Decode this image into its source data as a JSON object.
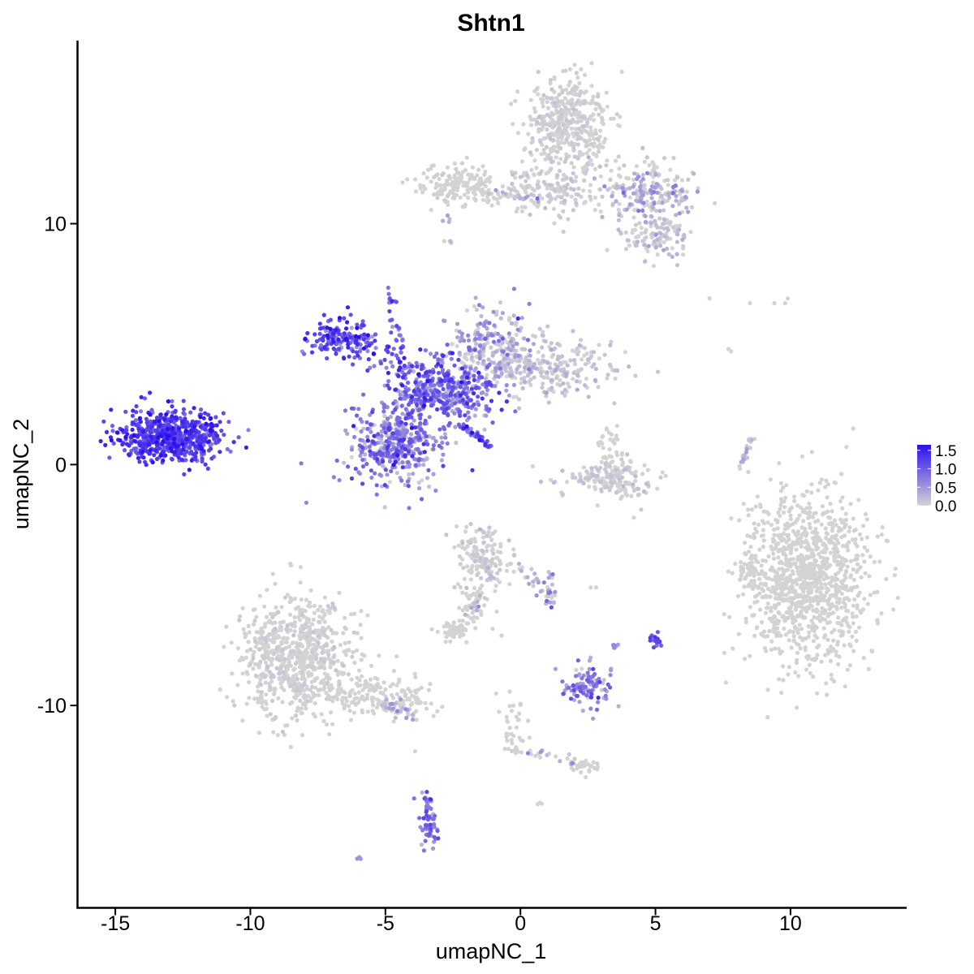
{
  "chart_data": {
    "type": "scatter",
    "title": "Shtn1",
    "xlabel": "umapNC_1",
    "ylabel": "umapNC_2",
    "xlim": [
      -16.4,
      14.3
    ],
    "ylim": [
      -18.4,
      17.6
    ],
    "x_ticks": [
      -15,
      -10,
      -5,
      0,
      5,
      10
    ],
    "x_tick_labels": [
      "-15",
      "-10",
      "-5",
      "0",
      "5",
      "10"
    ],
    "y_ticks": [
      -10,
      0,
      10
    ],
    "y_tick_labels": [
      "-10",
      "0",
      "10"
    ],
    "grid": false,
    "legend_position": "right",
    "color_scale": {
      "low_color": "#d3d3d3",
      "high_color": "#2c0ff0",
      "min": 0,
      "max": 1.65,
      "breaks": [
        1.5,
        1.0,
        0.5,
        0.0
      ],
      "break_labels": [
        "1.5",
        "1.0",
        "0.5",
        "0.0"
      ]
    },
    "clusters": [
      {
        "cx": -12.9,
        "cy": 1.2,
        "sx": 1.1,
        "sy": 0.65,
        "n": 650,
        "expr": 1.2,
        "expr_sd": 0.25
      },
      {
        "cx": -4.6,
        "cy": 0.8,
        "sx": 1.0,
        "sy": 1.0,
        "n": 420,
        "expr": 0.7,
        "expr_sd": 0.35
      },
      {
        "cx": -2.9,
        "cy": 3.0,
        "sx": 1.2,
        "sy": 0.8,
        "n": 380,
        "expr": 0.8,
        "expr_sd": 0.35
      },
      {
        "cx": -6.7,
        "cy": 5.2,
        "sx": 0.7,
        "sy": 0.55,
        "n": 140,
        "expr": 1.1,
        "expr_sd": 0.3
      },
      {
        "cx": 0.8,
        "cy": 4.1,
        "sx": 1.6,
        "sy": 0.7,
        "n": 300,
        "expr": 0.1,
        "expr_sd": 0.12
      },
      {
        "cx": -1.2,
        "cy": 5.0,
        "sx": 0.9,
        "sy": 0.9,
        "n": 180,
        "expr": 0.3,
        "expr_sd": 0.3
      },
      {
        "cx": 1.8,
        "cy": 14.2,
        "sx": 0.9,
        "sy": 1.1,
        "n": 420,
        "expr": 0.02,
        "expr_sd": 0.05
      },
      {
        "cx": -2.3,
        "cy": 11.6,
        "sx": 0.9,
        "sy": 0.45,
        "n": 180,
        "expr": 0.0,
        "expr_sd": 0.03
      },
      {
        "cx": 1.2,
        "cy": 11.4,
        "sx": 1.2,
        "sy": 0.6,
        "n": 160,
        "expr": 0.05,
        "expr_sd": 0.08
      },
      {
        "cx": 4.8,
        "cy": 11.3,
        "sx": 0.9,
        "sy": 0.7,
        "n": 200,
        "expr": 0.15,
        "expr_sd": 0.3
      },
      {
        "cx": 5.0,
        "cy": 9.5,
        "sx": 0.8,
        "sy": 0.5,
        "n": 120,
        "expr": 0.05,
        "expr_sd": 0.15
      },
      {
        "cx": 10.6,
        "cy": -4.8,
        "sx": 1.35,
        "sy": 2.1,
        "n": 1100,
        "expr": 0.0,
        "expr_sd": 0.0
      },
      {
        "cx": 8.4,
        "cy": -4.6,
        "sx": 0.25,
        "sy": 0.5,
        "n": 40,
        "expr": 0.0,
        "expr_sd": 0.0
      },
      {
        "cx": -8.3,
        "cy": -8.0,
        "sx": 1.2,
        "sy": 1.5,
        "n": 750,
        "expr": 0.0,
        "expr_sd": 0.05
      },
      {
        "cx": -5.2,
        "cy": -9.6,
        "sx": 1.2,
        "sy": 0.5,
        "n": 160,
        "expr": 0.0,
        "expr_sd": 0.02
      },
      {
        "cx": -1.4,
        "cy": -3.9,
        "sx": 0.55,
        "sy": 0.7,
        "n": 150,
        "expr": 0.02,
        "expr_sd": 0.08
      },
      {
        "cx": -1.8,
        "cy": -5.9,
        "sx": 0.4,
        "sy": 0.6,
        "n": 40,
        "expr": 0.0,
        "expr_sd": 0.0
      },
      {
        "cx": 1.1,
        "cy": -5.2,
        "sx": 0.2,
        "sy": 0.6,
        "n": 20,
        "expr": 0.3,
        "expr_sd": 0.4
      },
      {
        "cx": -2.5,
        "cy": -6.9,
        "sx": 0.3,
        "sy": 0.25,
        "n": 50,
        "expr": 0.0,
        "expr_sd": 0.0
      },
      {
        "cx": 3.2,
        "cy": -0.6,
        "sx": 1.0,
        "sy": 0.5,
        "n": 180,
        "expr": 0.02,
        "expr_sd": 0.1
      },
      {
        "cx": 3.3,
        "cy": 0.8,
        "sx": 0.3,
        "sy": 0.4,
        "n": 30,
        "expr": 0.0,
        "expr_sd": 0.0
      },
      {
        "cx": 2.4,
        "cy": -9.2,
        "sx": 0.5,
        "sy": 0.45,
        "n": 110,
        "expr": 0.6,
        "expr_sd": 0.35
      },
      {
        "cx": 5.0,
        "cy": -7.3,
        "sx": 0.15,
        "sy": 0.2,
        "n": 20,
        "expr": 1.0,
        "expr_sd": 0.2
      },
      {
        "cx": 3.4,
        "cy": -7.5,
        "sx": 0.15,
        "sy": 0.12,
        "n": 6,
        "expr": 0.5,
        "expr_sd": 0.3
      },
      {
        "cx": -0.3,
        "cy": -10.8,
        "sx": 0.3,
        "sy": 0.6,
        "n": 30,
        "expr": 0.0,
        "expr_sd": 0.0
      },
      {
        "cx": 2.3,
        "cy": -12.5,
        "sx": 0.3,
        "sy": 0.2,
        "n": 30,
        "expr": 0.0,
        "expr_sd": 0.0
      },
      {
        "cx": -3.4,
        "cy": -14.9,
        "sx": 0.25,
        "sy": 0.55,
        "n": 40,
        "expr": 0.7,
        "expr_sd": 0.3
      },
      {
        "cx": -6.0,
        "cy": -16.3,
        "sx": 0.08,
        "sy": 0.05,
        "n": 4,
        "expr": 0.5,
        "expr_sd": 0.3
      },
      {
        "cx": 0.7,
        "cy": -14.1,
        "sx": 0.08,
        "sy": 0.05,
        "n": 3,
        "expr": 0.0,
        "expr_sd": 0.0
      }
    ],
    "strands": [
      {
        "from": [
          -4.9,
          7.5
        ],
        "to": [
          -4.1,
          2.5
        ],
        "n": 45,
        "jitter": 0.12,
        "expr": 0.9
      },
      {
        "from": [
          -6.2,
          5.3
        ],
        "to": [
          -3.6,
          3.6
        ],
        "n": 60,
        "expr": 1.0,
        "jitter": 0.3
      },
      {
        "from": [
          -2.2,
          1.7
        ],
        "to": [
          -1.1,
          0.7
        ],
        "n": 40,
        "expr": 1.0,
        "jitter": 0.08
      },
      {
        "from": [
          -3.8,
          2.6
        ],
        "to": [
          -2.6,
          4.8
        ],
        "n": 40,
        "expr": 0.9,
        "jitter": 0.2
      },
      {
        "from": [
          -1.3,
          11.3
        ],
        "to": [
          0.6,
          11.0
        ],
        "n": 30,
        "expr": 0.05,
        "jitter": 0.08
      },
      {
        "from": [
          -2.7,
          9.2
        ],
        "to": [
          -2.7,
          10.5
        ],
        "n": 8,
        "expr": 0.0,
        "jitter": 0.08
      },
      {
        "from": [
          -1.1,
          -4.2
        ],
        "to": [
          -1.9,
          -6.6
        ],
        "n": 25,
        "expr": 0.0,
        "jitter": 0.1
      },
      {
        "from": [
          0.0,
          -4.3
        ],
        "to": [
          1.2,
          -5.6
        ],
        "n": 30,
        "expr": 0.1,
        "jitter": 0.15
      },
      {
        "from": [
          8.1,
          -0.2
        ],
        "to": [
          8.6,
          1.2
        ],
        "n": 25,
        "expr": 0.0,
        "jitter": 0.07
      },
      {
        "from": [
          -5.0,
          -10.0
        ],
        "to": [
          -3.9,
          -10.4
        ],
        "n": 40,
        "expr": 0.0,
        "jitter": 0.15
      },
      {
        "from": [
          -0.5,
          -11.8
        ],
        "to": [
          2.3,
          -12.3
        ],
        "n": 25,
        "expr": 0.0,
        "jitter": 0.12
      },
      {
        "from": [
          -3.5,
          -13.6
        ],
        "to": [
          -3.3,
          -15.5
        ],
        "n": 25,
        "expr": 0.8,
        "jitter": 0.1
      }
    ],
    "outliers": [
      [
        7.0,
        6.9
      ],
      [
        8.5,
        6.7
      ],
      [
        9.4,
        6.7
      ],
      [
        9.8,
        6.7
      ],
      [
        9.9,
        6.9
      ],
      [
        7.7,
        4.8
      ],
      [
        7.8,
        4.7
      ],
      [
        4.2,
        -2.2
      ],
      [
        2.6,
        -5.1
      ],
      [
        2.8,
        -5.1
      ],
      [
        -3.9,
        -11.9
      ],
      [
        -0.7,
        -7.1
      ],
      [
        -0.9,
        -9.5
      ]
    ]
  }
}
